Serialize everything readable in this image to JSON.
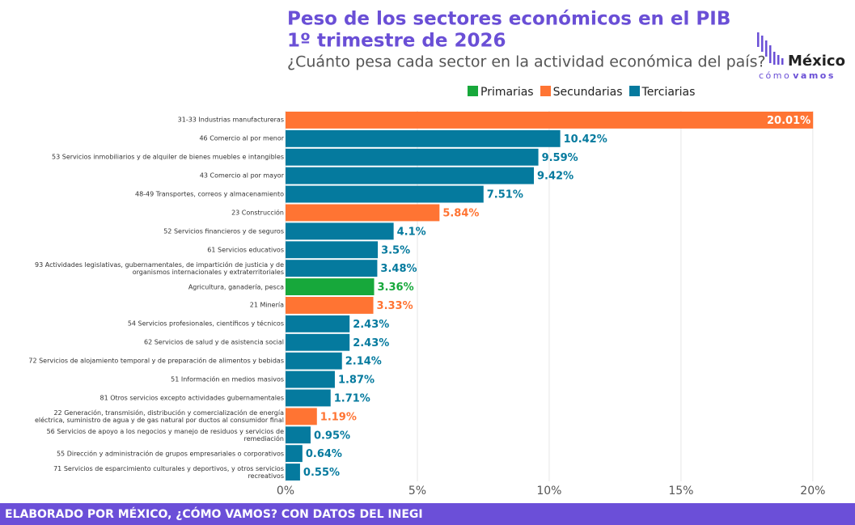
{
  "chart_data": {
    "type": "bar",
    "orientation": "horizontal",
    "stacked": true,
    "title": "Peso de los sectores económicos en el PIB",
    "subtitle": "1º trimestre de 2026",
    "subtitle2": "¿Cuánto pesa cada sector en la actividad económica del país?",
    "logo": {
      "name": "México",
      "tag_a": "cómo",
      "tag_b": "vamos"
    },
    "footer": "ELABORADO POR MÉXICO, ¿CÓMO VAMOS? CON DATOS DEL INEGI",
    "categories": [
      "31-33 Industrias manufactureras",
      "46 Comercio al por menor",
      "53 Servicios inmobiliarios y de alquiler de bienes muebles e intangibles",
      "43 Comercio al por mayor",
      "48-49 Transportes, correos y almacenamiento",
      "23 Construcción",
      "52 Servicios financieros y de seguros",
      "61 Servicios educativos",
      "93 Actividades legislativas, gubernamentales, de impartición de justicia y de\norganismos internacionales y extraterritoriales",
      "Agricultura, ganadería, pesca",
      "21 Minería",
      "54 Servicios profesionales, científicos y técnicos",
      "62 Servicios de salud y de asistencia social",
      "72 Servicios de alojamiento temporal y de preparación de alimentos y bebidas",
      "51 Información en medios masivos",
      "81 Otros servicios excepto actividades gubernamentales",
      "22 Generación, transmisión, distribución y comercialización de energía\neléctrica, suministro de agua y de gas natural por ductos al consumidor final",
      "56 Servicios de apoyo a los negocios y manejo de residuos y servicios de\nremediación",
      "55 Dirección y administración de grupos empresariales o corporativos",
      "71 Servicios de esparcimiento culturales y deportivos, y otros servicios\nrecreativos"
    ],
    "series": [
      {
        "name": "Primarias",
        "color": "#17a83b",
        "values": [
          null,
          null,
          null,
          null,
          null,
          null,
          null,
          null,
          null,
          3.36,
          null,
          null,
          null,
          null,
          null,
          null,
          null,
          null,
          null,
          null
        ],
        "value_labels": [
          null,
          null,
          null,
          null,
          null,
          null,
          null,
          null,
          null,
          "3.36%",
          null,
          null,
          null,
          null,
          null,
          null,
          null,
          null,
          null,
          null
        ]
      },
      {
        "name": "Secundarias",
        "color": "#ff7433",
        "values": [
          20.01,
          null,
          null,
          null,
          null,
          5.84,
          null,
          null,
          null,
          null,
          3.33,
          null,
          null,
          null,
          null,
          null,
          1.19,
          null,
          null,
          null
        ],
        "value_labels": [
          "20.01%",
          null,
          null,
          null,
          null,
          "5.84%",
          null,
          null,
          null,
          null,
          "3.33%",
          null,
          null,
          null,
          null,
          null,
          "1.19%",
          null,
          null,
          null
        ]
      },
      {
        "name": "Terciarias",
        "color": "#057a9e",
        "values": [
          null,
          10.42,
          9.59,
          9.42,
          7.51,
          null,
          4.1,
          3.5,
          3.48,
          null,
          null,
          2.43,
          2.43,
          2.14,
          1.87,
          1.71,
          null,
          0.95,
          0.64,
          0.55
        ],
        "value_labels": [
          null,
          "10.42%",
          "9.59%",
          "9.42%",
          "7.51%",
          null,
          "4.1%",
          "3.5%",
          "3.48%",
          null,
          null,
          "2.43%",
          "2.43%",
          "2.14%",
          "1.87%",
          "1.71%",
          null,
          "0.95%",
          "0.64%",
          "0.55%"
        ]
      }
    ],
    "xlim": [
      0,
      21.6
    ],
    "xticks": [
      {
        "value": 0,
        "label": "0%"
      },
      {
        "value": 5,
        "label": "5%"
      },
      {
        "value": 10,
        "label": "10%"
      },
      {
        "value": 15,
        "label": "15%"
      },
      {
        "value": 20,
        "label": "20%"
      }
    ],
    "grid": true,
    "legend": "top"
  }
}
